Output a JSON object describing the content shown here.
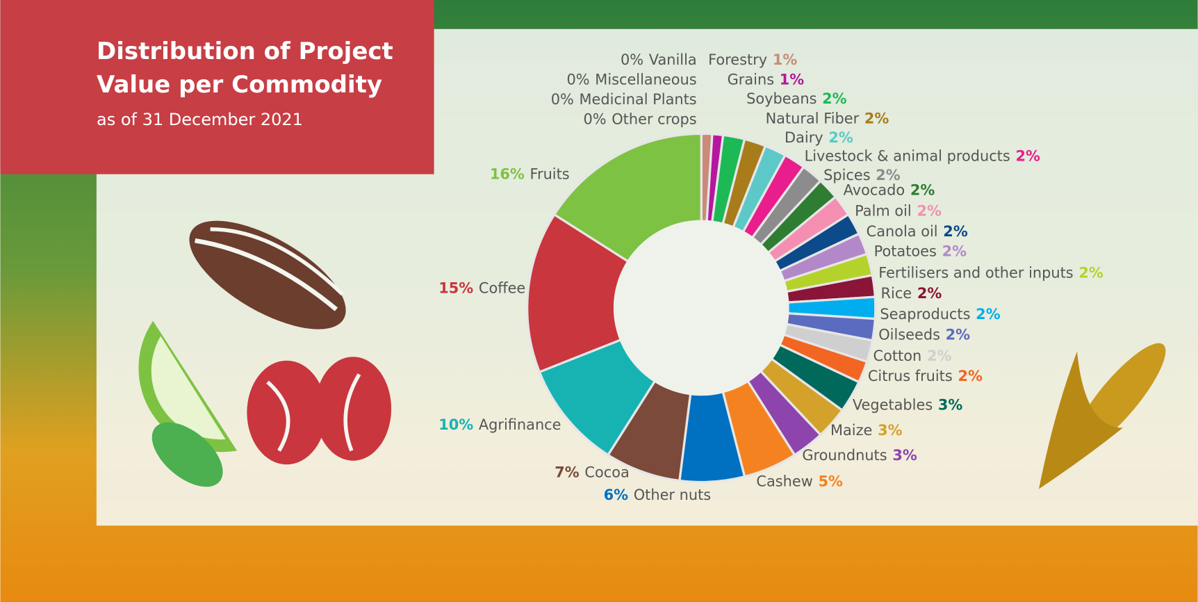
{
  "chart_data": {
    "type": "pie",
    "title": "Distribution of Project Value per Commodity",
    "subtitle": "as of 31 December 2021",
    "categories": [
      "Vanilla",
      "Miscellaneous",
      "Medicinal Plants",
      "Other crops",
      "Forestry",
      "Grains",
      "Soybeans",
      "Natural Fiber",
      "Dairy",
      "Livestock & animal products",
      "Spices",
      "Avocado",
      "Palm oil",
      "Canola oil",
      "Potatoes",
      "Fertilisers and other inputs",
      "Rice",
      "Seaproducts",
      "Oilseeds",
      "Cotton",
      "Citrus fruits",
      "Vegetables",
      "Maize",
      "Groundnuts",
      "Cashew",
      "Other nuts",
      "Cocoa",
      "Agrifinance",
      "Coffee",
      "Fruits"
    ],
    "values": [
      0,
      0,
      0,
      0,
      1,
      1,
      2,
      2,
      2,
      2,
      2,
      2,
      2,
      2,
      2,
      2,
      2,
      2,
      2,
      2,
      2,
      3,
      3,
      3,
      5,
      6,
      7,
      10,
      15,
      16
    ],
    "value_labels": [
      "0%",
      "0%",
      "0%",
      "0%",
      "1%",
      "1%",
      "2%",
      "2%",
      "2%",
      "2%",
      "2%",
      "2%",
      "2%",
      "2%",
      "2%",
      "2%",
      "2%",
      "2%",
      "2%",
      "2%",
      "2%",
      "3%",
      "3%",
      "3%",
      "5%",
      "6%",
      "7%",
      "10%",
      "15%",
      "16%"
    ],
    "colors": [
      "#d9b38c",
      "#9e9e9e",
      "#7fbf7f",
      "#bdbdbd",
      "#c98a7a",
      "#b5179e",
      "#1db954",
      "#a87c1a",
      "#5cc8c8",
      "#e91e8c",
      "#8c8c8c",
      "#2e7d32",
      "#f48fb1",
      "#0d4a8a",
      "#b388c9",
      "#b5d22a",
      "#8a1538",
      "#00aeef",
      "#5b6bbf",
      "#cfcfcf",
      "#f26522",
      "#00695c",
      "#d4a12a",
      "#8e44ad",
      "#f58220",
      "#0070c0",
      "#7b4a3a",
      "#17b3b3",
      "#c9363e",
      "#7dc242"
    ]
  }
}
